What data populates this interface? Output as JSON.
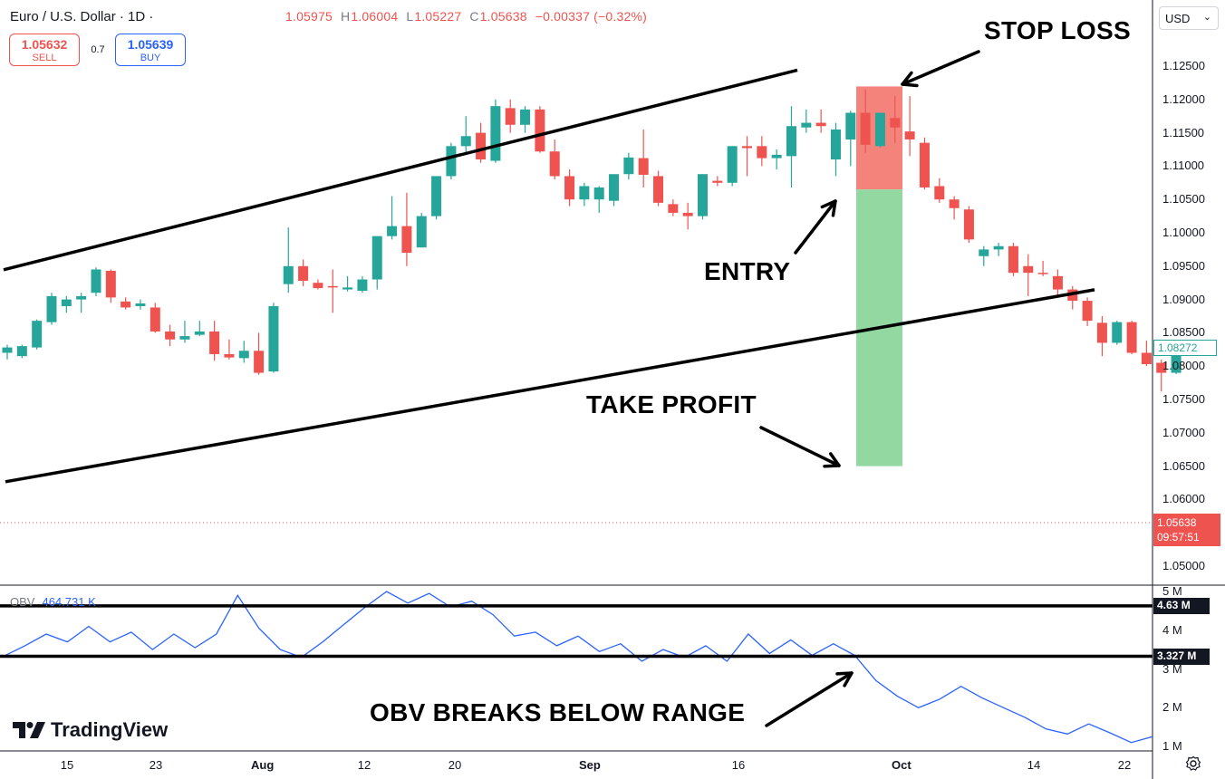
{
  "header": {
    "symbol": "Euro / U.S. Dollar · 1D ·",
    "ohlc": {
      "o_key": "",
      "o": "1.05975",
      "h_key": "H",
      "h": "1.06004",
      "l_key": "L",
      "l": "1.05227",
      "c_key": "C",
      "c": "1.05638",
      "change": "−0.00337 (−0.32%)"
    }
  },
  "trade": {
    "sell_price": "1.05632",
    "sell_label": "SELL",
    "buy_price": "1.05639",
    "buy_label": "BUY",
    "spread": "0.7"
  },
  "currency_select": {
    "value": "USD"
  },
  "price_axis": {
    "ticks": [
      "1.12500",
      "1.12000",
      "1.11500",
      "1.11000",
      "1.10500",
      "1.10000",
      "1.09500",
      "1.09000",
      "1.08500",
      "1.08000",
      "1.07500",
      "1.07000",
      "1.06500",
      "1.06000",
      "1.05000"
    ],
    "last_tag": "1.08272",
    "current_price": "1.05638",
    "countdown": "09:57:51"
  },
  "obv": {
    "label": "OBV",
    "value": "464.731 K",
    "axis_ticks": [
      "5 M",
      "4 M",
      "3 M",
      "2 M",
      "1 M"
    ],
    "upper_tag": "4.63 M",
    "lower_tag": "3.327 M"
  },
  "time_axis": {
    "ticks": [
      "15",
      "23",
      "Aug",
      "12",
      "20",
      "Sep",
      "16",
      "Oct",
      "14",
      "22"
    ]
  },
  "annotations": {
    "stop_loss": "STOP LOSS",
    "entry": "ENTRY",
    "take_profit": "TAKE PROFIT",
    "obv_break": "OBV BREAKS BELOW RANGE"
  },
  "branding": {
    "logo_text": "TradingView"
  },
  "colors": {
    "up": "#26a69a",
    "down": "#ef5350",
    "obv_line": "#2962ff",
    "stop_zone": "#f4837b",
    "profit_zone": "#93d7a1"
  },
  "chart_data": {
    "type": "candlestick",
    "price_candles": [
      [
        1.082,
        1.0832,
        1.081,
        1.0828
      ],
      [
        1.0815,
        1.0832,
        1.0812,
        1.083
      ],
      [
        1.0828,
        1.087,
        1.0825,
        1.0868
      ],
      [
        1.0866,
        1.091,
        1.0862,
        1.0905
      ],
      [
        1.089,
        1.0905,
        1.088,
        1.09
      ],
      [
        1.09,
        1.091,
        1.088,
        1.0905
      ],
      [
        1.091,
        1.0948,
        1.0905,
        1.0945
      ],
      [
        1.0943,
        1.0945,
        1.0895,
        1.0903
      ],
      [
        1.0897,
        1.0903,
        1.0885,
        1.0888
      ],
      [
        1.089,
        1.09,
        1.0885,
        1.0894
      ],
      [
        1.0888,
        1.0895,
        1.085,
        1.0852
      ],
      [
        1.0852,
        1.0862,
        1.083,
        1.084
      ],
      [
        1.084,
        1.0868,
        1.0835,
        1.0845
      ],
      [
        1.0847,
        1.0868,
        1.0845,
        1.0852
      ],
      [
        1.0852,
        1.0868,
        1.0808,
        1.0818
      ],
      [
        1.0818,
        1.084,
        1.081,
        1.0813
      ],
      [
        1.0812,
        1.0838,
        1.0805,
        1.0823
      ],
      [
        1.0823,
        1.085,
        1.0787,
        1.079
      ],
      [
        1.0792,
        1.0895,
        1.079,
        1.089
      ],
      [
        1.0923,
        1.1008,
        1.091,
        1.095
      ],
      [
        1.095,
        1.096,
        1.092,
        1.0928
      ],
      [
        1.0925,
        1.093,
        1.0915,
        1.0917
      ],
      [
        1.092,
        1.0945,
        1.088,
        1.0918
      ],
      [
        1.0915,
        1.0935,
        1.0912,
        1.0918
      ],
      [
        1.0913,
        1.0935,
        1.091,
        1.093
      ],
      [
        1.093,
        1.0995,
        1.0915,
        1.0995
      ],
      [
        1.0995,
        1.1055,
        1.099,
        1.101
      ],
      [
        1.101,
        1.106,
        1.095,
        1.097
      ],
      [
        1.0978,
        1.103,
        1.0978,
        1.1025
      ],
      [
        1.1025,
        1.1085,
        1.102,
        1.1085
      ],
      [
        1.1085,
        1.1135,
        1.108,
        1.113
      ],
      [
        1.113,
        1.1175,
        1.112,
        1.1145
      ],
      [
        1.115,
        1.1165,
        1.1105,
        1.111
      ],
      [
        1.1108,
        1.12,
        1.1105,
        1.119
      ],
      [
        1.1187,
        1.12,
        1.115,
        1.1162
      ],
      [
        1.1162,
        1.119,
        1.115,
        1.1185
      ],
      [
        1.1185,
        1.119,
        1.112,
        1.1122
      ],
      [
        1.1122,
        1.114,
        1.108,
        1.1085
      ],
      [
        1.1085,
        1.1095,
        1.104,
        1.105
      ],
      [
        1.105,
        1.1075,
        1.104,
        1.107
      ],
      [
        1.105,
        1.107,
        1.103,
        1.1068
      ],
      [
        1.1048,
        1.1085,
        1.104,
        1.1088
      ],
      [
        1.1088,
        1.112,
        1.108,
        1.1113
      ],
      [
        1.1112,
        1.1155,
        1.1068,
        1.1087
      ],
      [
        1.1085,
        1.1093,
        1.104,
        1.1045
      ],
      [
        1.1043,
        1.105,
        1.1025,
        1.103
      ],
      [
        1.103,
        1.1045,
        1.1005,
        1.1025
      ],
      [
        1.1025,
        1.1088,
        1.102,
        1.1088
      ],
      [
        1.1078,
        1.1085,
        1.107,
        1.1075
      ],
      [
        1.1075,
        1.113,
        1.107,
        1.113
      ],
      [
        1.113,
        1.1145,
        1.1085,
        1.1127
      ],
      [
        1.113,
        1.1145,
        1.11,
        1.1112
      ],
      [
        1.1112,
        1.1125,
        1.1095,
        1.1117
      ],
      [
        1.1115,
        1.119,
        1.1068,
        1.116
      ],
      [
        1.1158,
        1.1185,
        1.115,
        1.1165
      ],
      [
        1.1165,
        1.1185,
        1.115,
        1.116
      ],
      [
        1.111,
        1.1165,
        1.1085,
        1.1155
      ],
      [
        1.114,
        1.1183,
        1.11,
        1.118
      ],
      [
        1.118,
        1.1215,
        1.112,
        1.1132
      ],
      [
        1.113,
        1.118,
        1.1128,
        1.118
      ],
      [
        1.1172,
        1.1205,
        1.1135,
        1.1158
      ],
      [
        1.1152,
        1.1205,
        1.1115,
        1.114
      ],
      [
        1.1135,
        1.1143,
        1.1065,
        1.1068
      ],
      [
        1.107,
        1.1082,
        1.1045,
        1.105
      ],
      [
        1.105,
        1.1055,
        1.102,
        1.1037
      ],
      [
        1.1035,
        1.104,
        1.0985,
        1.099
      ],
      [
        1.0965,
        1.098,
        1.095,
        1.0975
      ],
      [
        1.0975,
        1.0985,
        1.0965,
        1.098
      ],
      [
        1.098,
        1.0985,
        1.0935,
        1.094
      ],
      [
        1.095,
        1.0968,
        1.0905,
        1.094
      ],
      [
        1.094,
        1.0958,
        1.0935,
        1.0938
      ],
      [
        1.0935,
        1.0945,
        1.0905,
        1.0915
      ],
      [
        1.0915,
        1.092,
        1.0885,
        1.0898
      ],
      [
        1.0898,
        1.0903,
        1.086,
        1.0868
      ],
      [
        1.0865,
        1.0875,
        1.0815,
        1.0835
      ],
      [
        1.0835,
        1.0868,
        1.0832,
        1.0866
      ],
      [
        1.0866,
        1.0868,
        1.0818,
        1.082
      ],
      [
        1.082,
        1.0838,
        1.08,
        1.0803
      ],
      [
        1.0805,
        1.081,
        1.0762,
        1.079
      ],
      [
        1.079,
        1.0833,
        1.0788,
        1.0827
      ]
    ],
    "channel": {
      "upper": [
        [
          0,
          1.09446
        ],
        [
          1,
          1.1244
        ]
      ],
      "lower": [
        [
          0,
          1.06266
        ],
        [
          1,
          1.09146
        ]
      ]
    },
    "stop_loss_zone": {
      "from": 1.1065,
      "to": 1.12195
    },
    "take_profit_zone": {
      "from": 1.065,
      "to": 1.1065
    },
    "obv": [
      3.33,
      3.6,
      3.9,
      3.7,
      4.1,
      3.7,
      3.95,
      3.5,
      3.9,
      3.55,
      3.9,
      4.9,
      4.05,
      3.5,
      3.3,
      3.7,
      4.15,
      4.6,
      5.0,
      4.7,
      4.95,
      4.6,
      4.75,
      4.4,
      3.85,
      3.95,
      3.6,
      3.85,
      3.45,
      3.65,
      3.2,
      3.5,
      3.3,
      3.6,
      3.2,
      3.9,
      3.4,
      3.75,
      3.35,
      3.65,
      3.35,
      2.7,
      2.3,
      2.0,
      2.22,
      2.55,
      2.25,
      2.0,
      1.75,
      1.45,
      1.32,
      1.58,
      1.35,
      1.1,
      1.25
    ],
    "obv_range": {
      "upper": 4.63,
      "lower": 3.327
    },
    "ylim": [
      1.046,
      1.128
    ]
  }
}
